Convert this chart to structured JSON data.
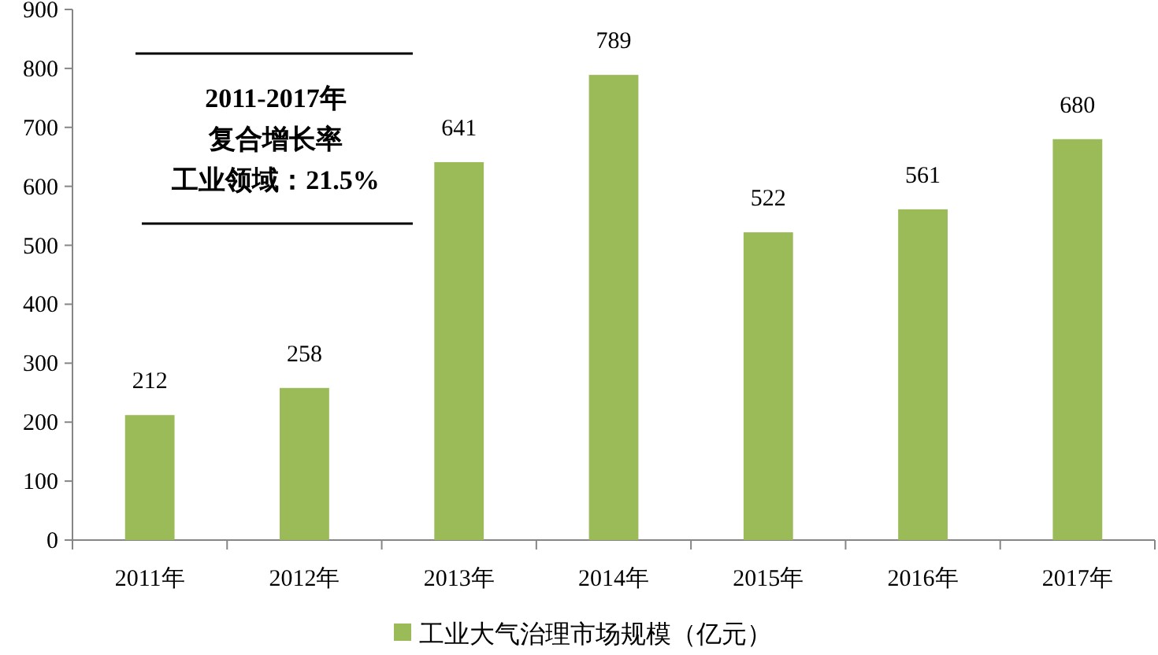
{
  "chart_data": {
    "type": "bar",
    "categories": [
      "2011年",
      "2012年",
      "2013年",
      "2014年",
      "2015年",
      "2016年",
      "2017年"
    ],
    "series": [
      {
        "name": "工业大气治理市场规模（亿元）",
        "color": "#9bbb59",
        "values": [
          212,
          258,
          641,
          789,
          522,
          561,
          680
        ]
      }
    ],
    "ylim": [
      0,
      900
    ],
    "yticks": [
      0,
      100,
      200,
      300,
      400,
      500,
      600,
      700,
      800,
      900
    ],
    "data_labels": true,
    "legend": "bottom",
    "grid": false,
    "annotations": [
      "2011-2017年",
      "复合增长率",
      "工业领域：21.5%"
    ]
  }
}
